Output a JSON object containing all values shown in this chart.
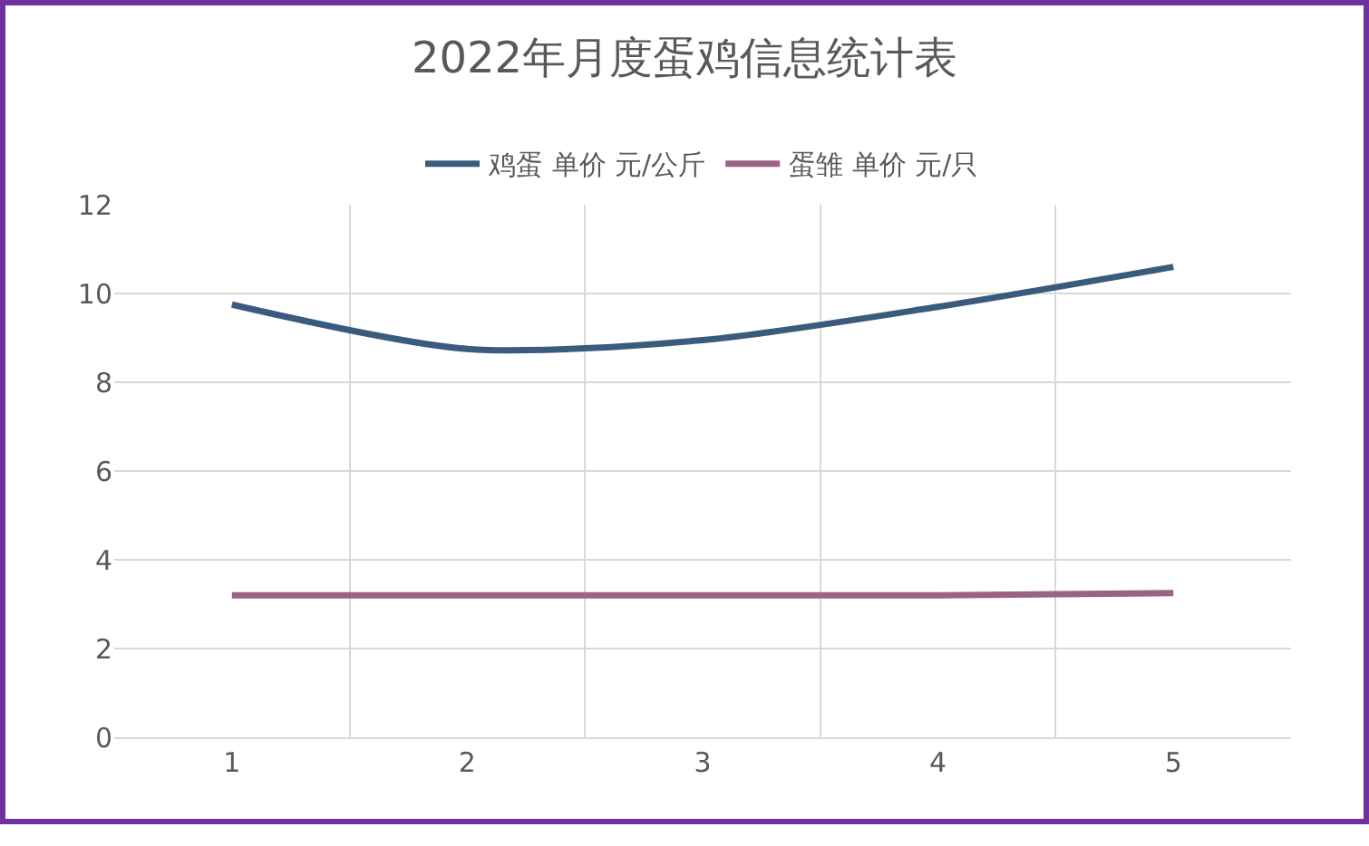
{
  "chart_data": {
    "type": "line",
    "title": "2022年月度蛋鸡信息统计表",
    "categories": [
      "1",
      "2",
      "3",
      "4",
      "5"
    ],
    "series": [
      {
        "name": "鸡蛋 单价 元/公斤",
        "color": "#3b5b7e",
        "values": [
          9.75,
          8.75,
          8.95,
          9.7,
          10.6
        ]
      },
      {
        "name": "蛋雏 单价 元/只",
        "color": "#9a6283",
        "values": [
          3.2,
          3.2,
          3.2,
          3.2,
          3.25
        ]
      }
    ],
    "ylim": [
      0,
      12
    ],
    "yticks": [
      0,
      2,
      4,
      6,
      8,
      10,
      12
    ],
    "grid": true,
    "legend": "top",
    "marker": "none",
    "line_style": "solid"
  }
}
